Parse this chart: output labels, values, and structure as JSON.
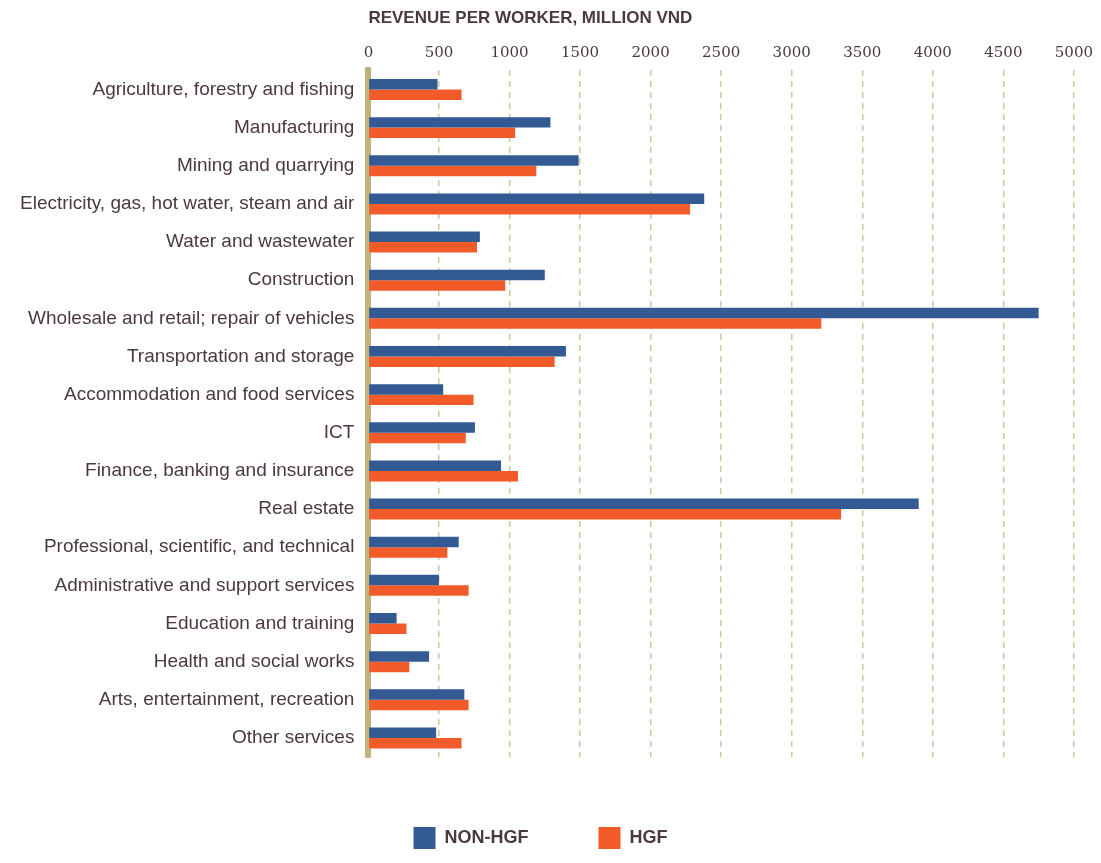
{
  "chart_data": {
    "type": "bar",
    "orientation": "horizontal",
    "xlabel": "REVENUE PER WORKER, MILLION VND",
    "categories": [
      "Agriculture, forestry and fishing",
      "Manufacturing",
      "Mining and quarrying",
      "Electricity, gas, hot water, steam and air",
      "Water and wastewater",
      "Construction",
      "Wholesale and retail; repair of vehicles",
      "Transportation and storage",
      "Accommodation and food services",
      "ICT",
      "Finance, banking and insurance",
      "Real estate",
      "Professional, scientific, and technical",
      "Administrative and support services",
      "Education and training",
      "Health and social works",
      "Arts, entertainment, recreation",
      "Other services"
    ],
    "series": [
      {
        "name": "NON-HGF",
        "color": "#335a93",
        "values": [
          490,
          1290,
          1490,
          2380,
          790,
          1250,
          4750,
          1400,
          530,
          755,
          940,
          3900,
          640,
          500,
          200,
          430,
          680,
          480
        ]
      },
      {
        "name": "HGF",
        "color": "#f15a29",
        "values": [
          660,
          1040,
          1190,
          2280,
          770,
          970,
          3210,
          1320,
          745,
          690,
          1060,
          3350,
          560,
          710,
          270,
          290,
          710,
          660
        ]
      }
    ],
    "xlim": [
      0,
      5000
    ],
    "xticks": [
      0,
      500,
      1000,
      1500,
      2000,
      2500,
      3000,
      3500,
      4000,
      4500,
      5000
    ],
    "grid": "x",
    "legend": "bottom"
  }
}
